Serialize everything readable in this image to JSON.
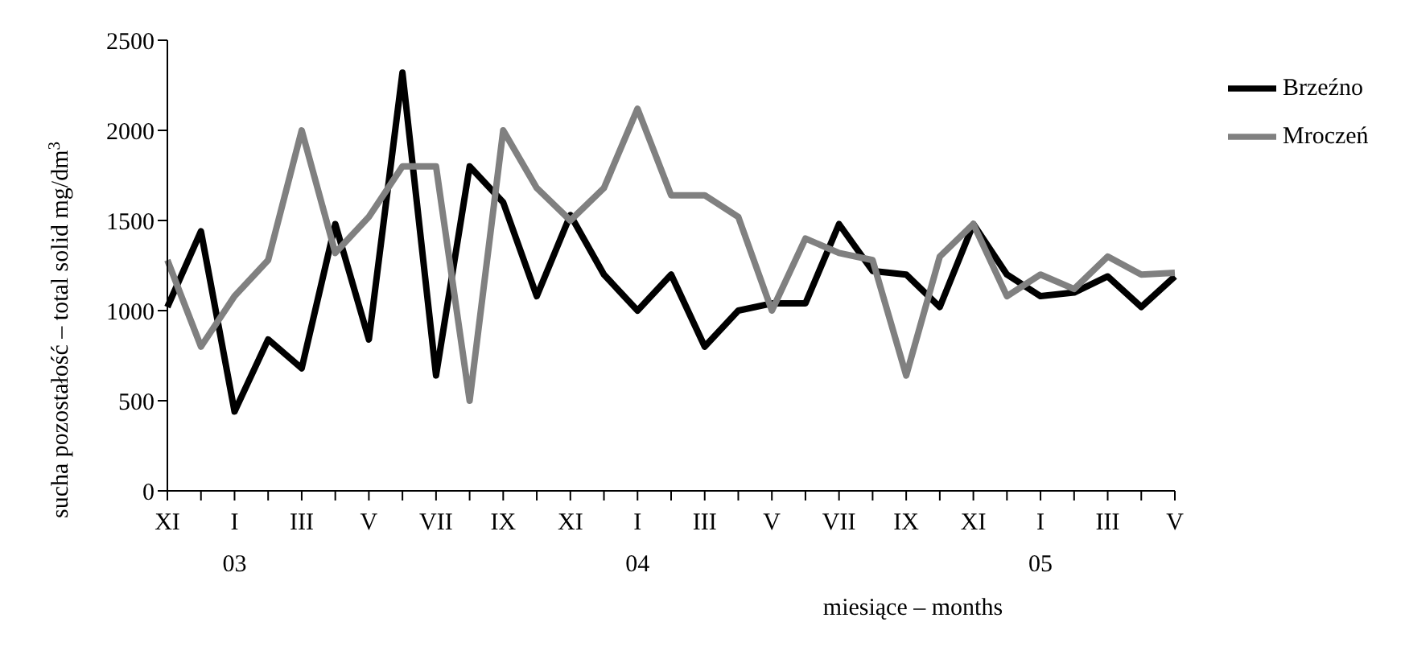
{
  "chart_data": {
    "type": "line",
    "xlabel": "miesiące – months",
    "ylabel": "sucha pozostałość – total solid mg/dm$^{3}$",
    "categories": [
      "XI",
      null,
      "I",
      null,
      "III",
      null,
      "V",
      null,
      "VII",
      null,
      "IX",
      null,
      "XI",
      null,
      "I",
      null,
      "III",
      null,
      "V",
      null,
      "VII",
      null,
      "IX",
      null,
      "XI",
      null,
      "I",
      null,
      "III",
      null,
      "V"
    ],
    "series": [
      {
        "name": "Brzeźno",
        "color": "#000000",
        "values": [
          1020,
          1440,
          440,
          840,
          680,
          1480,
          840,
          2320,
          640,
          1800,
          1600,
          1080,
          1530,
          1200,
          1000,
          1200,
          800,
          1000,
          1040,
          1040,
          1480,
          1220,
          1200,
          1020,
          1480,
          1200,
          1080,
          1100,
          1190,
          1020,
          1190
        ]
      },
      {
        "name": "Mroczeń",
        "color": "#808080",
        "values": [
          1280,
          800,
          1080,
          1280,
          2000,
          1320,
          1520,
          1800,
          1800,
          500,
          2000,
          1680,
          1500,
          1680,
          2120,
          1640,
          1640,
          1520,
          1000,
          1400,
          1320,
          1280,
          640,
          1300,
          1480,
          1080,
          1200,
          1120,
          1300,
          1200,
          1210
        ]
      }
    ],
    "annotations": [
      "03",
      "04",
      "05"
    ],
    "ylim": [
      0,
      2500
    ],
    "yticks": [
      0,
      500,
      1000,
      1500,
      2000,
      2500
    ],
    "grid": false,
    "legend": "top right",
    "marker": "none",
    "line_style": "solid"
  }
}
